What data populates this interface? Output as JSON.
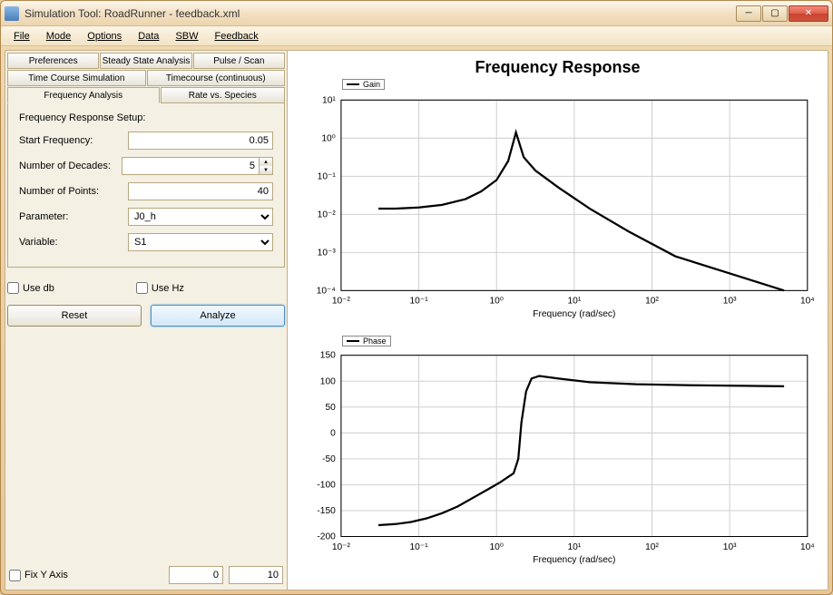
{
  "window": {
    "title": "Simulation Tool: RoadRunner - feedback.xml"
  },
  "menu": {
    "items": [
      "File",
      "Mode",
      "Options",
      "Data",
      "SBW",
      "Feedback"
    ]
  },
  "tabs": {
    "row1": [
      "Preferences",
      "Steady State Analysis",
      "Pulse / Scan"
    ],
    "row2": [
      "Time Course Simulation",
      "Timecourse (continuous)"
    ],
    "row3": [
      "Frequency Analysis",
      "Rate vs. Species"
    ],
    "active": "Frequency Analysis"
  },
  "form": {
    "section": "Frequency Response Setup:",
    "start_freq_label": "Start Frequency:",
    "start_freq": "0.05",
    "num_decades_label": "Number of Decades:",
    "num_decades": "5",
    "num_points_label": "Number of Points:",
    "num_points": "40",
    "parameter_label": "Parameter:",
    "parameter": "J0_h",
    "variable_label": "Variable:",
    "variable": "S1",
    "use_db": "Use db",
    "use_hz": "Use Hz",
    "reset": "Reset",
    "analyze": "Analyze"
  },
  "bottom": {
    "fix_y": "Fix Y Axis",
    "ymin": "0",
    "ymax": "10"
  },
  "chart": {
    "title": "Frequency Response",
    "xaxis_label": "Frequency (rad/sec)",
    "gain": {
      "legend": "Gain",
      "x_ticks_exp": [
        -2,
        -1,
        0,
        1,
        2,
        3,
        4
      ],
      "y_ticks_exp": [
        -4,
        -3,
        -2,
        -1,
        0,
        1
      ],
      "points_logx_logy": [
        [
          -1.52,
          -1.85
        ],
        [
          -1.3,
          -1.85
        ],
        [
          -1.0,
          -1.82
        ],
        [
          -0.7,
          -1.75
        ],
        [
          -0.4,
          -1.6
        ],
        [
          -0.2,
          -1.4
        ],
        [
          0.0,
          -1.1
        ],
        [
          0.15,
          -0.6
        ],
        [
          0.25,
          0.15
        ],
        [
          0.35,
          -0.5
        ],
        [
          0.5,
          -0.85
        ],
        [
          0.8,
          -1.3
        ],
        [
          1.2,
          -1.85
        ],
        [
          1.7,
          -2.45
        ],
        [
          2.3,
          -3.1
        ],
        [
          3.0,
          -3.55
        ],
        [
          3.7,
          -4.0
        ]
      ],
      "grid_color": "#d0d0d0",
      "line_color": "#000000",
      "line_width": 2.2
    },
    "phase": {
      "legend": "Phase",
      "x_ticks_exp": [
        -2,
        -1,
        0,
        1,
        2,
        3,
        4
      ],
      "y_ticks": [
        -200,
        -150,
        -100,
        -50,
        0,
        50,
        100,
        150
      ],
      "points_logx_y": [
        [
          -1.52,
          -178
        ],
        [
          -1.3,
          -176
        ],
        [
          -1.1,
          -172
        ],
        [
          -0.9,
          -165
        ],
        [
          -0.7,
          -155
        ],
        [
          -0.5,
          -142
        ],
        [
          -0.3,
          -125
        ],
        [
          -0.1,
          -108
        ],
        [
          0.05,
          -95
        ],
        [
          0.15,
          -85
        ],
        [
          0.22,
          -78
        ],
        [
          0.28,
          -50
        ],
        [
          0.32,
          20
        ],
        [
          0.38,
          80
        ],
        [
          0.45,
          105
        ],
        [
          0.55,
          110
        ],
        [
          0.8,
          105
        ],
        [
          1.2,
          98
        ],
        [
          1.8,
          94
        ],
        [
          2.5,
          92
        ],
        [
          3.2,
          91
        ],
        [
          3.7,
          90
        ]
      ],
      "grid_color": "#d0d0d0",
      "line_color": "#000000",
      "line_width": 2.2
    }
  }
}
